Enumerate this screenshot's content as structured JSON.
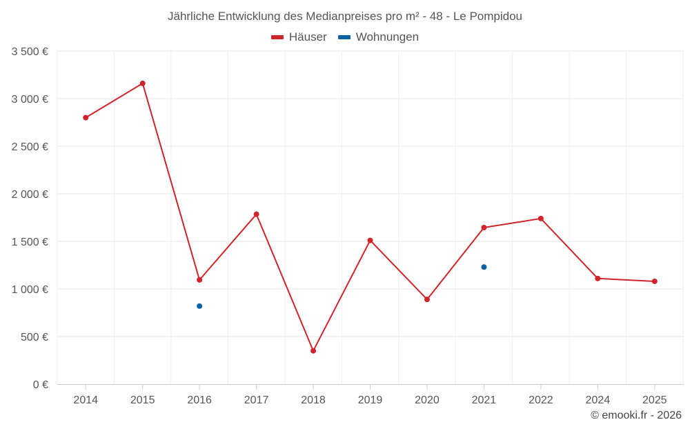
{
  "chart_data": {
    "type": "line",
    "title": "Jährliche Entwicklung des Medianpreises pro m² - 48 - Le Pompidou",
    "categories": [
      "2014",
      "2015",
      "2016",
      "2017",
      "2018",
      "2019",
      "2020",
      "2021",
      "2022",
      "2024",
      "2025"
    ],
    "series": [
      {
        "name": "Häuser",
        "color": "#d0232a",
        "values": [
          2800,
          3160,
          1095,
          1785,
          350,
          1510,
          890,
          1645,
          1740,
          1110,
          1080
        ]
      },
      {
        "name": "Wohnungen",
        "color": "#0a62a4",
        "values": [
          null,
          null,
          820,
          null,
          null,
          null,
          null,
          1230,
          null,
          null,
          null
        ]
      }
    ],
    "y_ticks": [
      "0 €",
      "500 €",
      "1 000 €",
      "1 500 €",
      "2 000 €",
      "2 500 €",
      "3 000 €",
      "3 500 €"
    ],
    "ylim": [
      0,
      3500
    ],
    "y_step": 500,
    "grid": true,
    "legend_position": "top"
  },
  "credit": "© emooki.fr - 2026"
}
